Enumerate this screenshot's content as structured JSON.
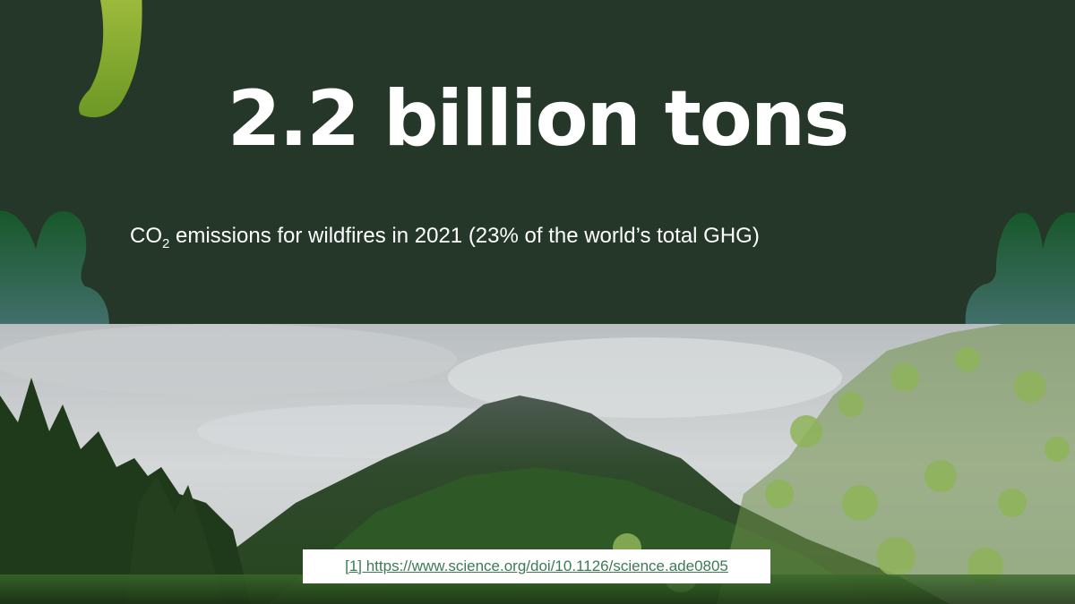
{
  "slide": {
    "headline": "2.2 billion tons",
    "subtitle_prefix": "CO",
    "subtitle_subscript": "2",
    "subtitle_rest": " emissions for wildfires in 2021 (23% of the world’s total GHG)",
    "citation_text": "[1] https://www.science.org/doi/10.1126/science.ade0805"
  },
  "colors": {
    "background": "#253728",
    "headline": "#ffffff",
    "citation_link": "#3d7a55",
    "leaf_top": "#1a5a2c",
    "leaf_bottom": "#3f6d6a",
    "banana_top": "#9ab83a",
    "banana_bottom": "#5f8f22"
  },
  "icons": {
    "top_left_decoration": "banana-shape-icon",
    "left_decoration": "leaf-cluster-icon",
    "right_decoration": "leaf-cluster-icon"
  }
}
